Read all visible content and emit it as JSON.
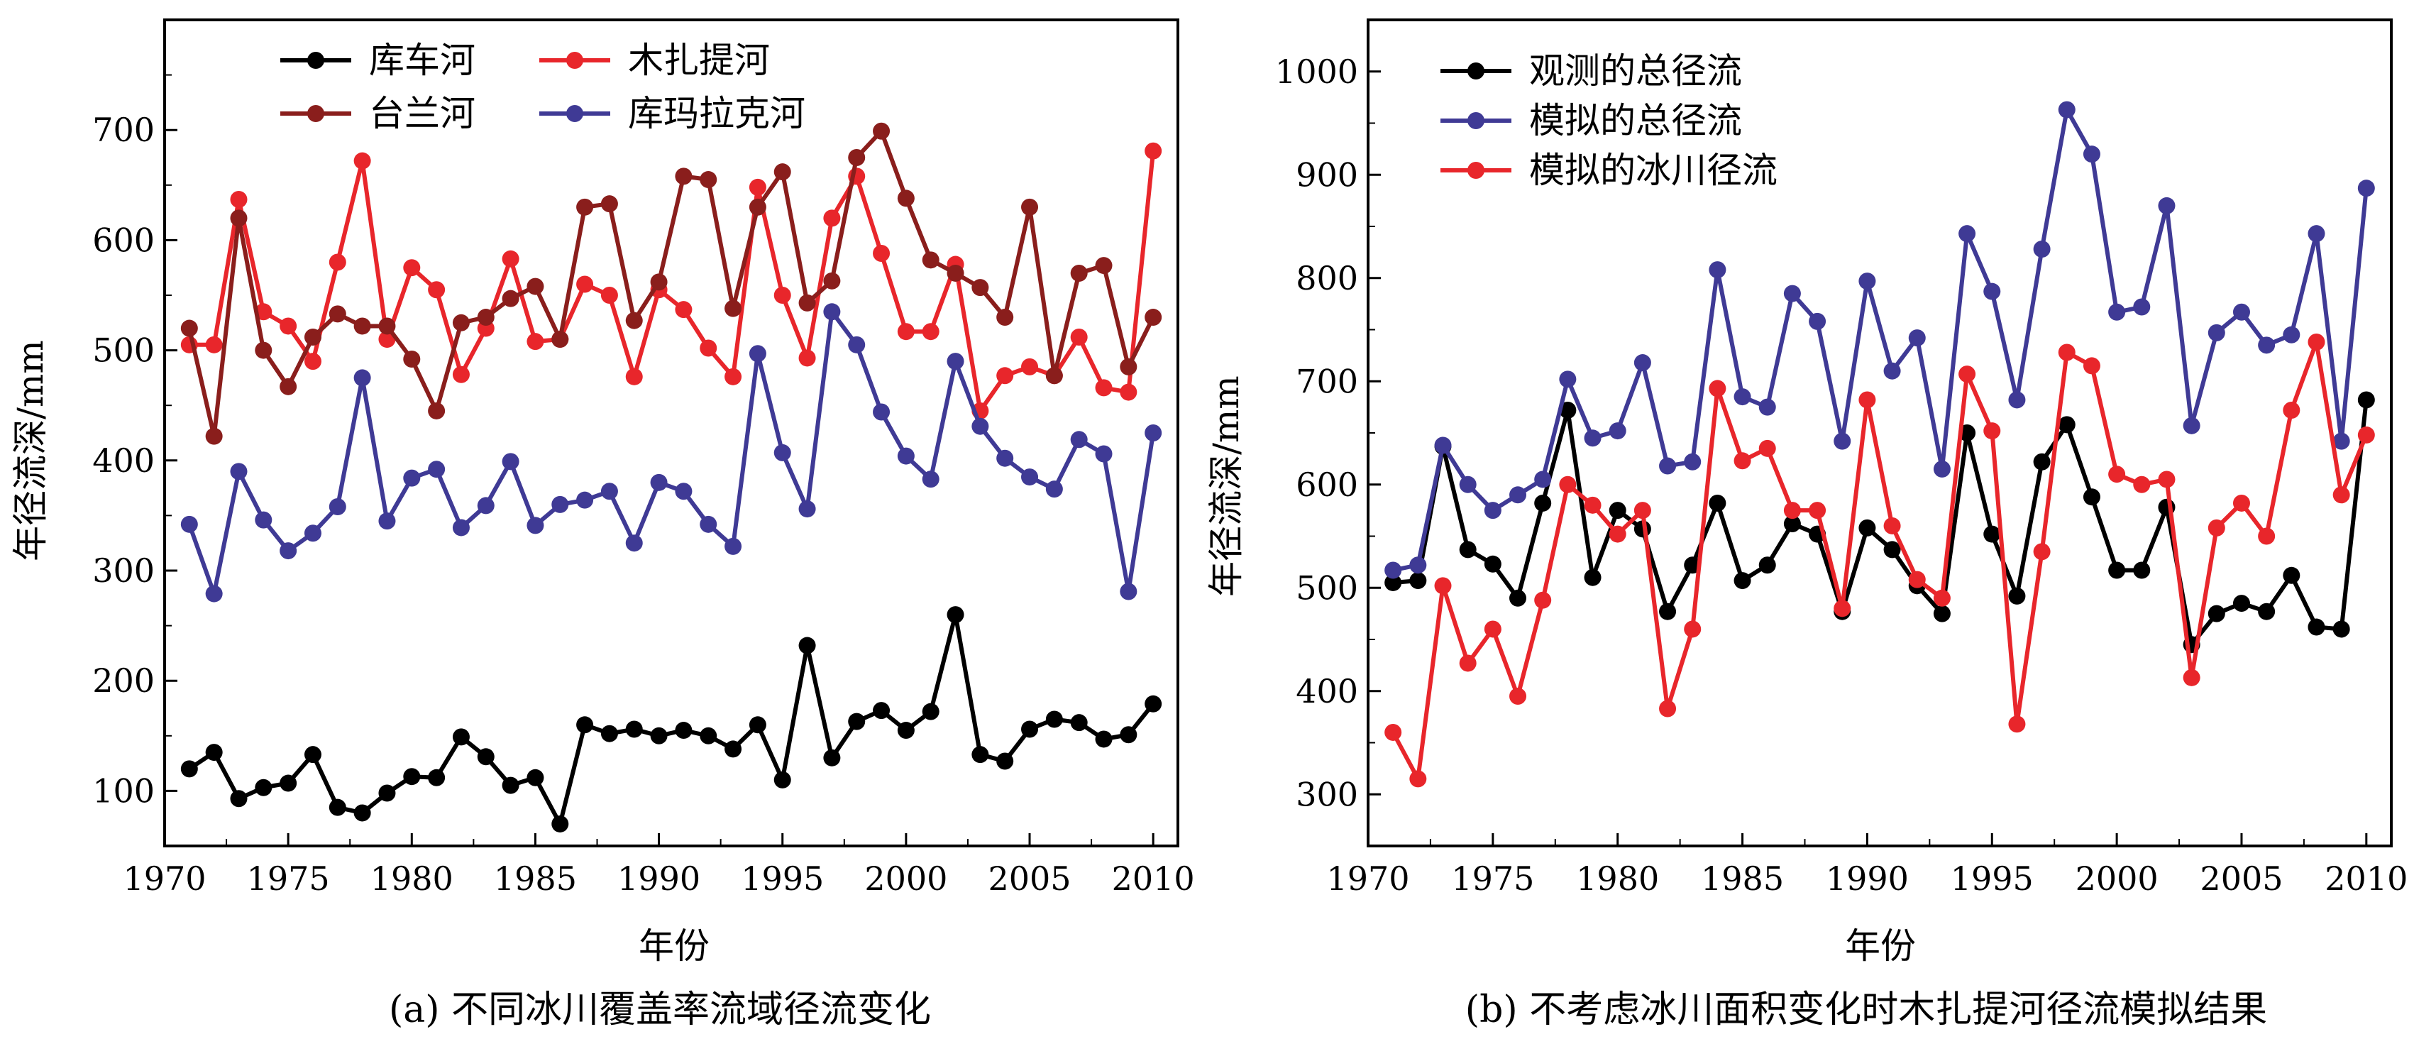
{
  "chart_data": [
    {
      "type": "line",
      "caption": "(a) 不同冰川覆盖率流域径流变化",
      "xlabel": "年份",
      "ylabel": "年径流深/mm",
      "xlim": [
        1970,
        2011
      ],
      "ylim": [
        50,
        800
      ],
      "xticks": [
        1970,
        1975,
        1980,
        1985,
        1990,
        1995,
        2000,
        2005,
        2010
      ],
      "yticks": [
        100,
        200,
        300,
        400,
        500,
        600,
        700
      ],
      "legend_position": "top-left",
      "x": [
        1971,
        1972,
        1973,
        1974,
        1975,
        1976,
        1977,
        1978,
        1979,
        1980,
        1981,
        1982,
        1983,
        1984,
        1985,
        1986,
        1987,
        1988,
        1989,
        1990,
        1991,
        1992,
        1993,
        1994,
        1995,
        1996,
        1997,
        1998,
        1999,
        2000,
        2001,
        2002,
        2003,
        2004,
        2005,
        2006,
        2007,
        2008,
        2009,
        2010
      ],
      "series": [
        {
          "name": "库车河",
          "color": "#000000",
          "values": [
            120,
            135,
            93,
            103,
            107,
            133,
            85,
            80,
            98,
            113,
            112,
            149,
            131,
            105,
            112,
            70,
            160,
            152,
            156,
            150,
            155,
            150,
            138,
            160,
            110,
            232,
            130,
            163,
            173,
            155,
            172,
            260,
            133,
            127,
            156,
            165,
            162,
            147,
            151,
            179
          ]
        },
        {
          "name": "木扎提河",
          "color": "#e8262b",
          "values": [
            505,
            505,
            637,
            535,
            522,
            490,
            580,
            672,
            510,
            575,
            555,
            478,
            520,
            583,
            508,
            510,
            560,
            550,
            476,
            555,
            537,
            502,
            476,
            648,
            550,
            493,
            620,
            658,
            588,
            517,
            517,
            578,
            445,
            477,
            485,
            477,
            512,
            466,
            462,
            681
          ]
        },
        {
          "name": "台兰河",
          "color": "#8a1e1c",
          "values": [
            520,
            422,
            620,
            500,
            467,
            512,
            533,
            522,
            522,
            492,
            445,
            525,
            530,
            547,
            558,
            510,
            630,
            633,
            527,
            562,
            658,
            655,
            538,
            630,
            662,
            543,
            563,
            675,
            699,
            638,
            582,
            570,
            557,
            530,
            630,
            477,
            570,
            577,
            485,
            530
          ]
        },
        {
          "name": "库玛拉克河",
          "color": "#3f3a95",
          "values": [
            342,
            279,
            390,
            346,
            318,
            334,
            358,
            475,
            345,
            384,
            392,
            339,
            359,
            399,
            341,
            360,
            364,
            372,
            325,
            380,
            372,
            342,
            322,
            497,
            407,
            356,
            535,
            505,
            444,
            404,
            383,
            490,
            431,
            402,
            385,
            374,
            419,
            406,
            281,
            425
          ]
        }
      ]
    },
    {
      "type": "line",
      "caption": "(b) 不考虑冰川面积变化时木扎提河径流模拟结果",
      "xlabel": "年份",
      "ylabel": "年径流深/mm",
      "xlim": [
        1970,
        2011
      ],
      "ylim": [
        250,
        1050
      ],
      "xticks": [
        1970,
        1975,
        1980,
        1985,
        1990,
        1995,
        2000,
        2005,
        2010
      ],
      "yticks": [
        300,
        400,
        500,
        600,
        700,
        800,
        900,
        1000
      ],
      "legend_position": "top-left",
      "x": [
        1971,
        1972,
        1973,
        1974,
        1975,
        1976,
        1977,
        1978,
        1979,
        1980,
        1981,
        1982,
        1983,
        1984,
        1985,
        1986,
        1987,
        1988,
        1989,
        1990,
        1991,
        1992,
        1993,
        1994,
        1995,
        1996,
        1997,
        1998,
        1999,
        2000,
        2001,
        2002,
        2003,
        2004,
        2005,
        2006,
        2007,
        2008,
        2009,
        2010
      ],
      "series": [
        {
          "name": "观测的总径流",
          "color": "#000000",
          "values": [
            505,
            507,
            637,
            537,
            523,
            490,
            582,
            672,
            510,
            575,
            557,
            477,
            522,
            582,
            507,
            522,
            562,
            552,
            477,
            558,
            537,
            502,
            475,
            650,
            552,
            492,
            622,
            658,
            588,
            517,
            517,
            578,
            445,
            475,
            485,
            477,
            512,
            462,
            460,
            682
          ]
        },
        {
          "name": "模拟的总径流",
          "color": "#3f3a95",
          "values": [
            517,
            522,
            638,
            600,
            575,
            590,
            605,
            702,
            645,
            652,
            718,
            618,
            622,
            808,
            685,
            675,
            785,
            758,
            642,
            797,
            710,
            742,
            615,
            843,
            787,
            682,
            828,
            963,
            920,
            767,
            772,
            870,
            657,
            747,
            767,
            735,
            745,
            843,
            642,
            887
          ]
        },
        {
          "name": "模拟的冰川径流",
          "color": "#e8262b",
          "values": [
            360,
            315,
            502,
            427,
            460,
            395,
            488,
            600,
            580,
            552,
            575,
            383,
            460,
            693,
            623,
            635,
            575,
            575,
            480,
            682,
            560,
            508,
            490,
            707,
            652,
            368,
            535,
            728,
            715,
            610,
            600,
            605,
            413,
            558,
            582,
            550,
            672,
            738,
            590,
            648
          ]
        }
      ]
    }
  ]
}
